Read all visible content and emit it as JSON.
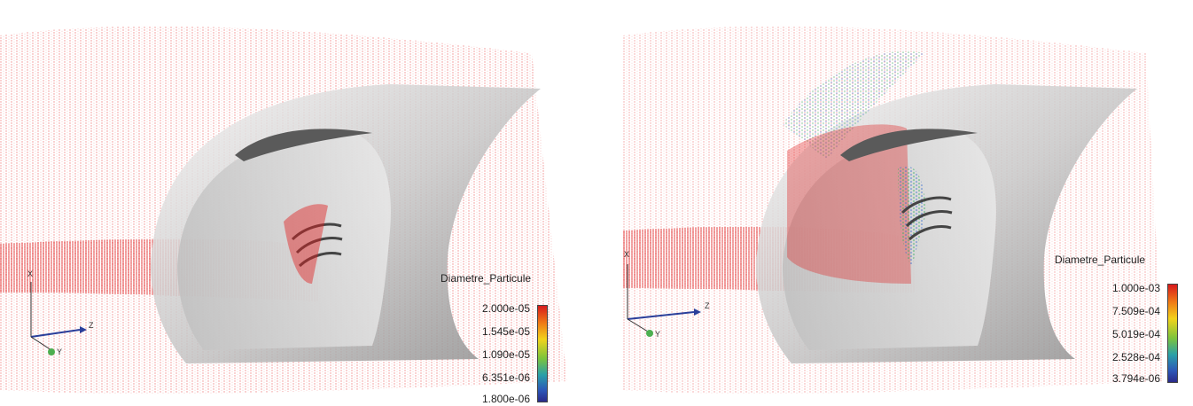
{
  "panels": [
    {
      "legend": {
        "title": "Diametre_Particule",
        "ticks": [
          "2.000e-05",
          "1.545e-05",
          "1.090e-05",
          "6.351e-06",
          "1.800e-06"
        ]
      },
      "axes": {
        "x": "X",
        "y": "Y",
        "z": "Z"
      },
      "colors": {
        "particles": "#e02020",
        "surface": "#d0d0d0"
      }
    },
    {
      "legend": {
        "title": "Diametre_Particule",
        "ticks": [
          "1.000e-03",
          "7.509e-04",
          "5.019e-04",
          "2.528e-04",
          "3.794e-06"
        ]
      },
      "axes": {
        "x": "X",
        "y": "Y",
        "z": "Z"
      },
      "colors": {
        "particles": "#e02020",
        "surface": "#d0d0d0"
      }
    }
  ]
}
